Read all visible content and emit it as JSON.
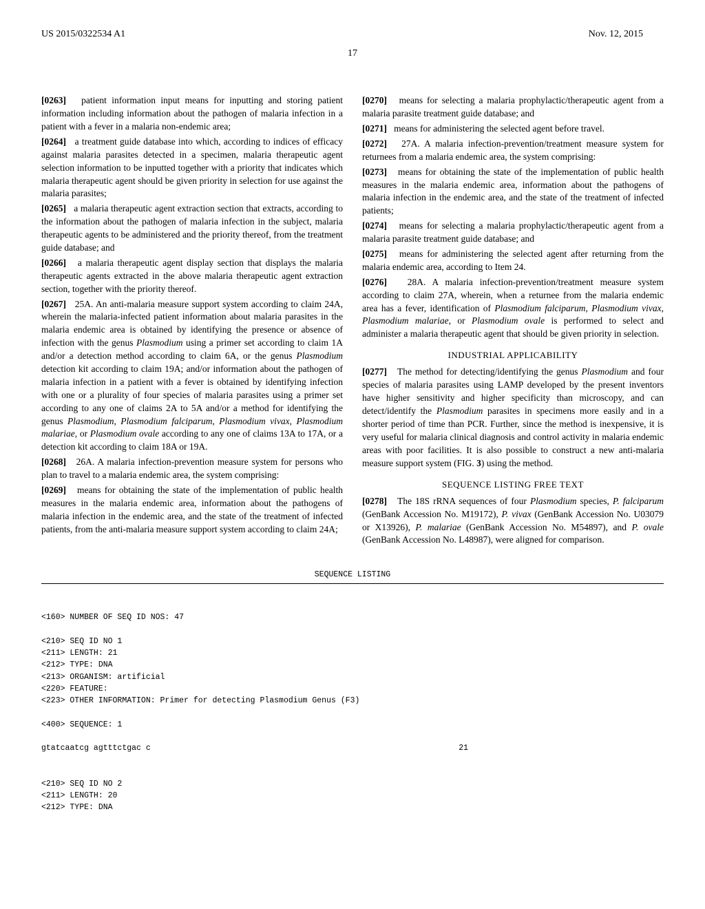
{
  "header": {
    "pub_number": "US 2015/0322534 A1",
    "date": "Nov. 12, 2015"
  },
  "page_number": "17",
  "left_column": {
    "p0263": {
      "num": "[0263]",
      "text": "patient information input means for inputting and storing patient information including information about the pathogen of malaria infection in a patient with a fever in a malaria non-endemic area;"
    },
    "p0264": {
      "num": "[0264]",
      "text": "a treatment guide database into which, according to indices of efficacy against malaria parasites detected in a specimen, malaria therapeutic agent selection information to be inputted together with a priority that indicates which malaria therapeutic agent should be given priority in selection for use against the malaria parasites;"
    },
    "p0265": {
      "num": "[0265]",
      "text": "a malaria therapeutic agent extraction section that extracts, according to the information about the pathogen of malaria infection in the subject, malaria therapeutic agents to be administered and the priority thereof, from the treatment guide database; and"
    },
    "p0266": {
      "num": "[0266]",
      "text": "a malaria therapeutic agent display section that displays the malaria therapeutic agents extracted in the above malaria therapeutic agent extraction section, together with the priority thereof."
    },
    "p0267": {
      "num": "[0267]",
      "pre": "25A. An anti-malaria measure support system according to claim 24A, wherein the malaria-infected patient information about malaria parasites in the malaria endemic area is obtained by identifying the presence or absence of infection with the genus ",
      "i1": "Plasmodium",
      "mid1": " using a primer set according to claim 1A and/or a detection method according to claim 6A, or the genus ",
      "i2": "Plasmodium",
      "mid2": " detection kit according to claim 19A; and/or information about the pathogen of malaria infection in a patient with a fever is obtained by identifying infection with one or a plurality of four species of malaria parasites using a primer set according to any one of claims 2A to 5A and/or a method for identifying the genus ",
      "i3": "Plasmodium, Plasmodium falciparum, Plasmodium vivax, Plasmodium malariae",
      "mid3": ", or ",
      "i4": "Plasmodium ovale",
      "post": " according to any one of claims 13A to 17A, or a detection kit according to claim 18A or 19A."
    },
    "p0268": {
      "num": "[0268]",
      "text": "26A. A malaria infection-prevention measure system for persons who plan to travel to a malaria endemic area, the system comprising:"
    },
    "p0269": {
      "num": "[0269]",
      "text": "means for obtaining the state of the implementation of public health measures in the malaria endemic area, information about the pathogens of malaria infection in the endemic area, and the state of the treatment of infected patients, from the anti-malaria measure support system according to claim 24A;"
    }
  },
  "right_column": {
    "p0270": {
      "num": "[0270]",
      "text": "means for selecting a malaria prophylactic/therapeutic agent from a malaria parasite treatment guide database; and"
    },
    "p0271": {
      "num": "[0271]",
      "text": "means for administering the selected agent before travel."
    },
    "p0272": {
      "num": "[0272]",
      "text": "27A. A malaria infection-prevention/treatment measure system for returnees from a malaria endemic area, the system comprising:"
    },
    "p0273": {
      "num": "[0273]",
      "text": "means for obtaining the state of the implementation of public health measures in the malaria endemic area, information about the pathogens of malaria infection in the endemic area, and the state of the treatment of infected patients;"
    },
    "p0274": {
      "num": "[0274]",
      "text": "means for selecting a malaria prophylactic/therapeutic agent from a malaria parasite treatment guide database; and"
    },
    "p0275": {
      "num": "[0275]",
      "text": "means for administering the selected agent after returning from the malaria endemic area, according to Item 24."
    },
    "p0276": {
      "num": "[0276]",
      "pre": "28A. A malaria infection-prevention/treatment measure system according to claim 27A, wherein, when a returnee from the malaria endemic area has a fever, identification of ",
      "i1": "Plasmodium falciparum, Plasmodium vivax, Plasmodium malariae",
      "mid1": ", or ",
      "i2": "Plasmodium ovale",
      "post": " is performed to select and administer a malaria therapeutic agent that should be given priority in selection."
    },
    "heading1": "INDUSTRIAL APPLICABILITY",
    "p0277": {
      "num": "[0277]",
      "pre": "The method for detecting/identifying the genus ",
      "i1": "Plasmodium",
      "mid1": " and four species of malaria parasites using LAMP developed by the present inventors have higher sensitivity and higher specificity than microscopy, and can detect/identify the ",
      "i2": "Plasmodium",
      "mid2": " parasites in specimens more easily and in a shorter period of time than PCR. Further, since the method is inexpensive, it is very useful for malaria clinical diagnosis and control activity in malaria endemic areas with poor facilities. It is also possible to construct a new anti-malaria measure support system (FIG. ",
      "fig": "3",
      "post": ") using the method."
    },
    "heading2": "SEQUENCE LISTING FREE TEXT",
    "p0278": {
      "num": "[0278]",
      "pre": "The 18S rRNA sequences of four ",
      "i1": "Plasmodium",
      "mid1": " species, ",
      "i2": "P. falciparum",
      "acc1": " (GenBank Accession No. M19172), ",
      "i3": "P. vivax",
      "acc2": " (GenBank Accession No. U03079 or X13926), ",
      "i4": "P. malariae",
      "acc3": " (GenBank Accession No. M54897), and ",
      "i5": "P. ovale",
      "post": " (GenBank Accession No. L48987), were aligned for comparison."
    }
  },
  "sequence_listing": {
    "title": "SEQUENCE LISTING",
    "lines": [
      "<160> NUMBER OF SEQ ID NOS: 47",
      "",
      "<210> SEQ ID NO 1",
      "<211> LENGTH: 21",
      "<212> TYPE: DNA",
      "<213> ORGANISM: artificial",
      "<220> FEATURE:",
      "<223> OTHER INFORMATION: Primer for detecting Plasmodium Genus (F3)",
      "",
      "<400> SEQUENCE: 1",
      ""
    ],
    "seq_line": "gtatcaatcg agtttctgac c",
    "seq_count": "21",
    "lines2": [
      "",
      "",
      "<210> SEQ ID NO 2",
      "<211> LENGTH: 20",
      "<212> TYPE: DNA"
    ]
  }
}
